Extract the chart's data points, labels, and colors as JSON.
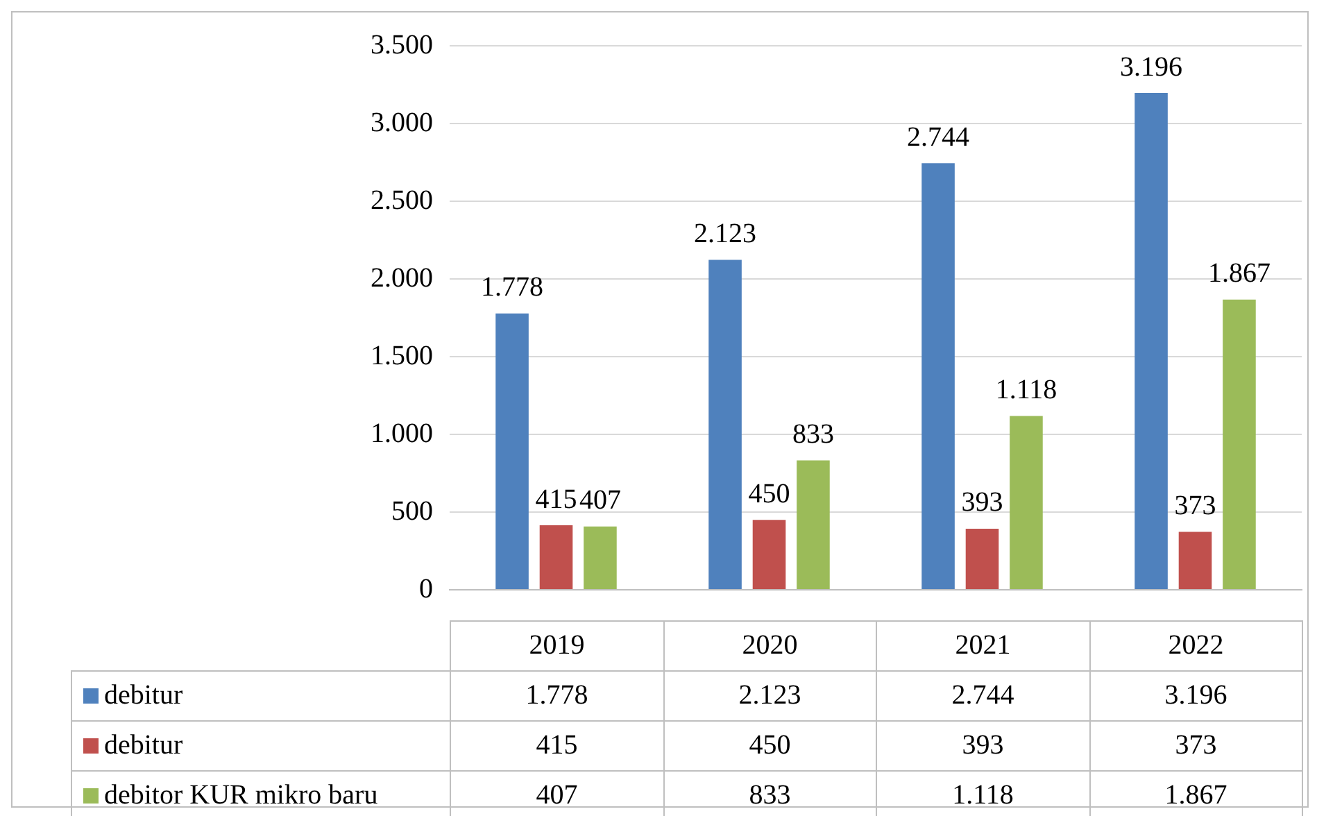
{
  "chart_data": {
    "type": "bar",
    "categories": [
      "2019",
      "2020",
      "2021",
      "2022"
    ],
    "series": [
      {
        "name": "debitur",
        "color": "#4f81bd",
        "values": [
          1778,
          2123,
          2744,
          3196
        ],
        "value_labels": [
          "1.778",
          "2.123",
          "2.744",
          "3.196"
        ]
      },
      {
        "name": "debitur",
        "color": "#c0504d",
        "values": [
          415,
          450,
          393,
          373
        ],
        "value_labels": [
          "415",
          "450",
          "393",
          "373"
        ]
      },
      {
        "name": "debitor KUR mikro baru",
        "color": "#9bbb59",
        "values": [
          407,
          833,
          1118,
          1867
        ],
        "value_labels": [
          "407",
          "833",
          "1.118",
          "1.867"
        ]
      }
    ],
    "ylim": [
      0,
      3500
    ],
    "yticks": [
      {
        "value": 0,
        "label": "0"
      },
      {
        "value": 500,
        "label": "500"
      },
      {
        "value": 1000,
        "label": "1.000"
      },
      {
        "value": 1500,
        "label": "1.500"
      },
      {
        "value": 2000,
        "label": "2.000"
      },
      {
        "value": 2500,
        "label": "2.500"
      },
      {
        "value": 3000,
        "label": "3.000"
      },
      {
        "value": 3500,
        "label": "3.500"
      }
    ],
    "grid": "y",
    "legend": "bottom"
  }
}
